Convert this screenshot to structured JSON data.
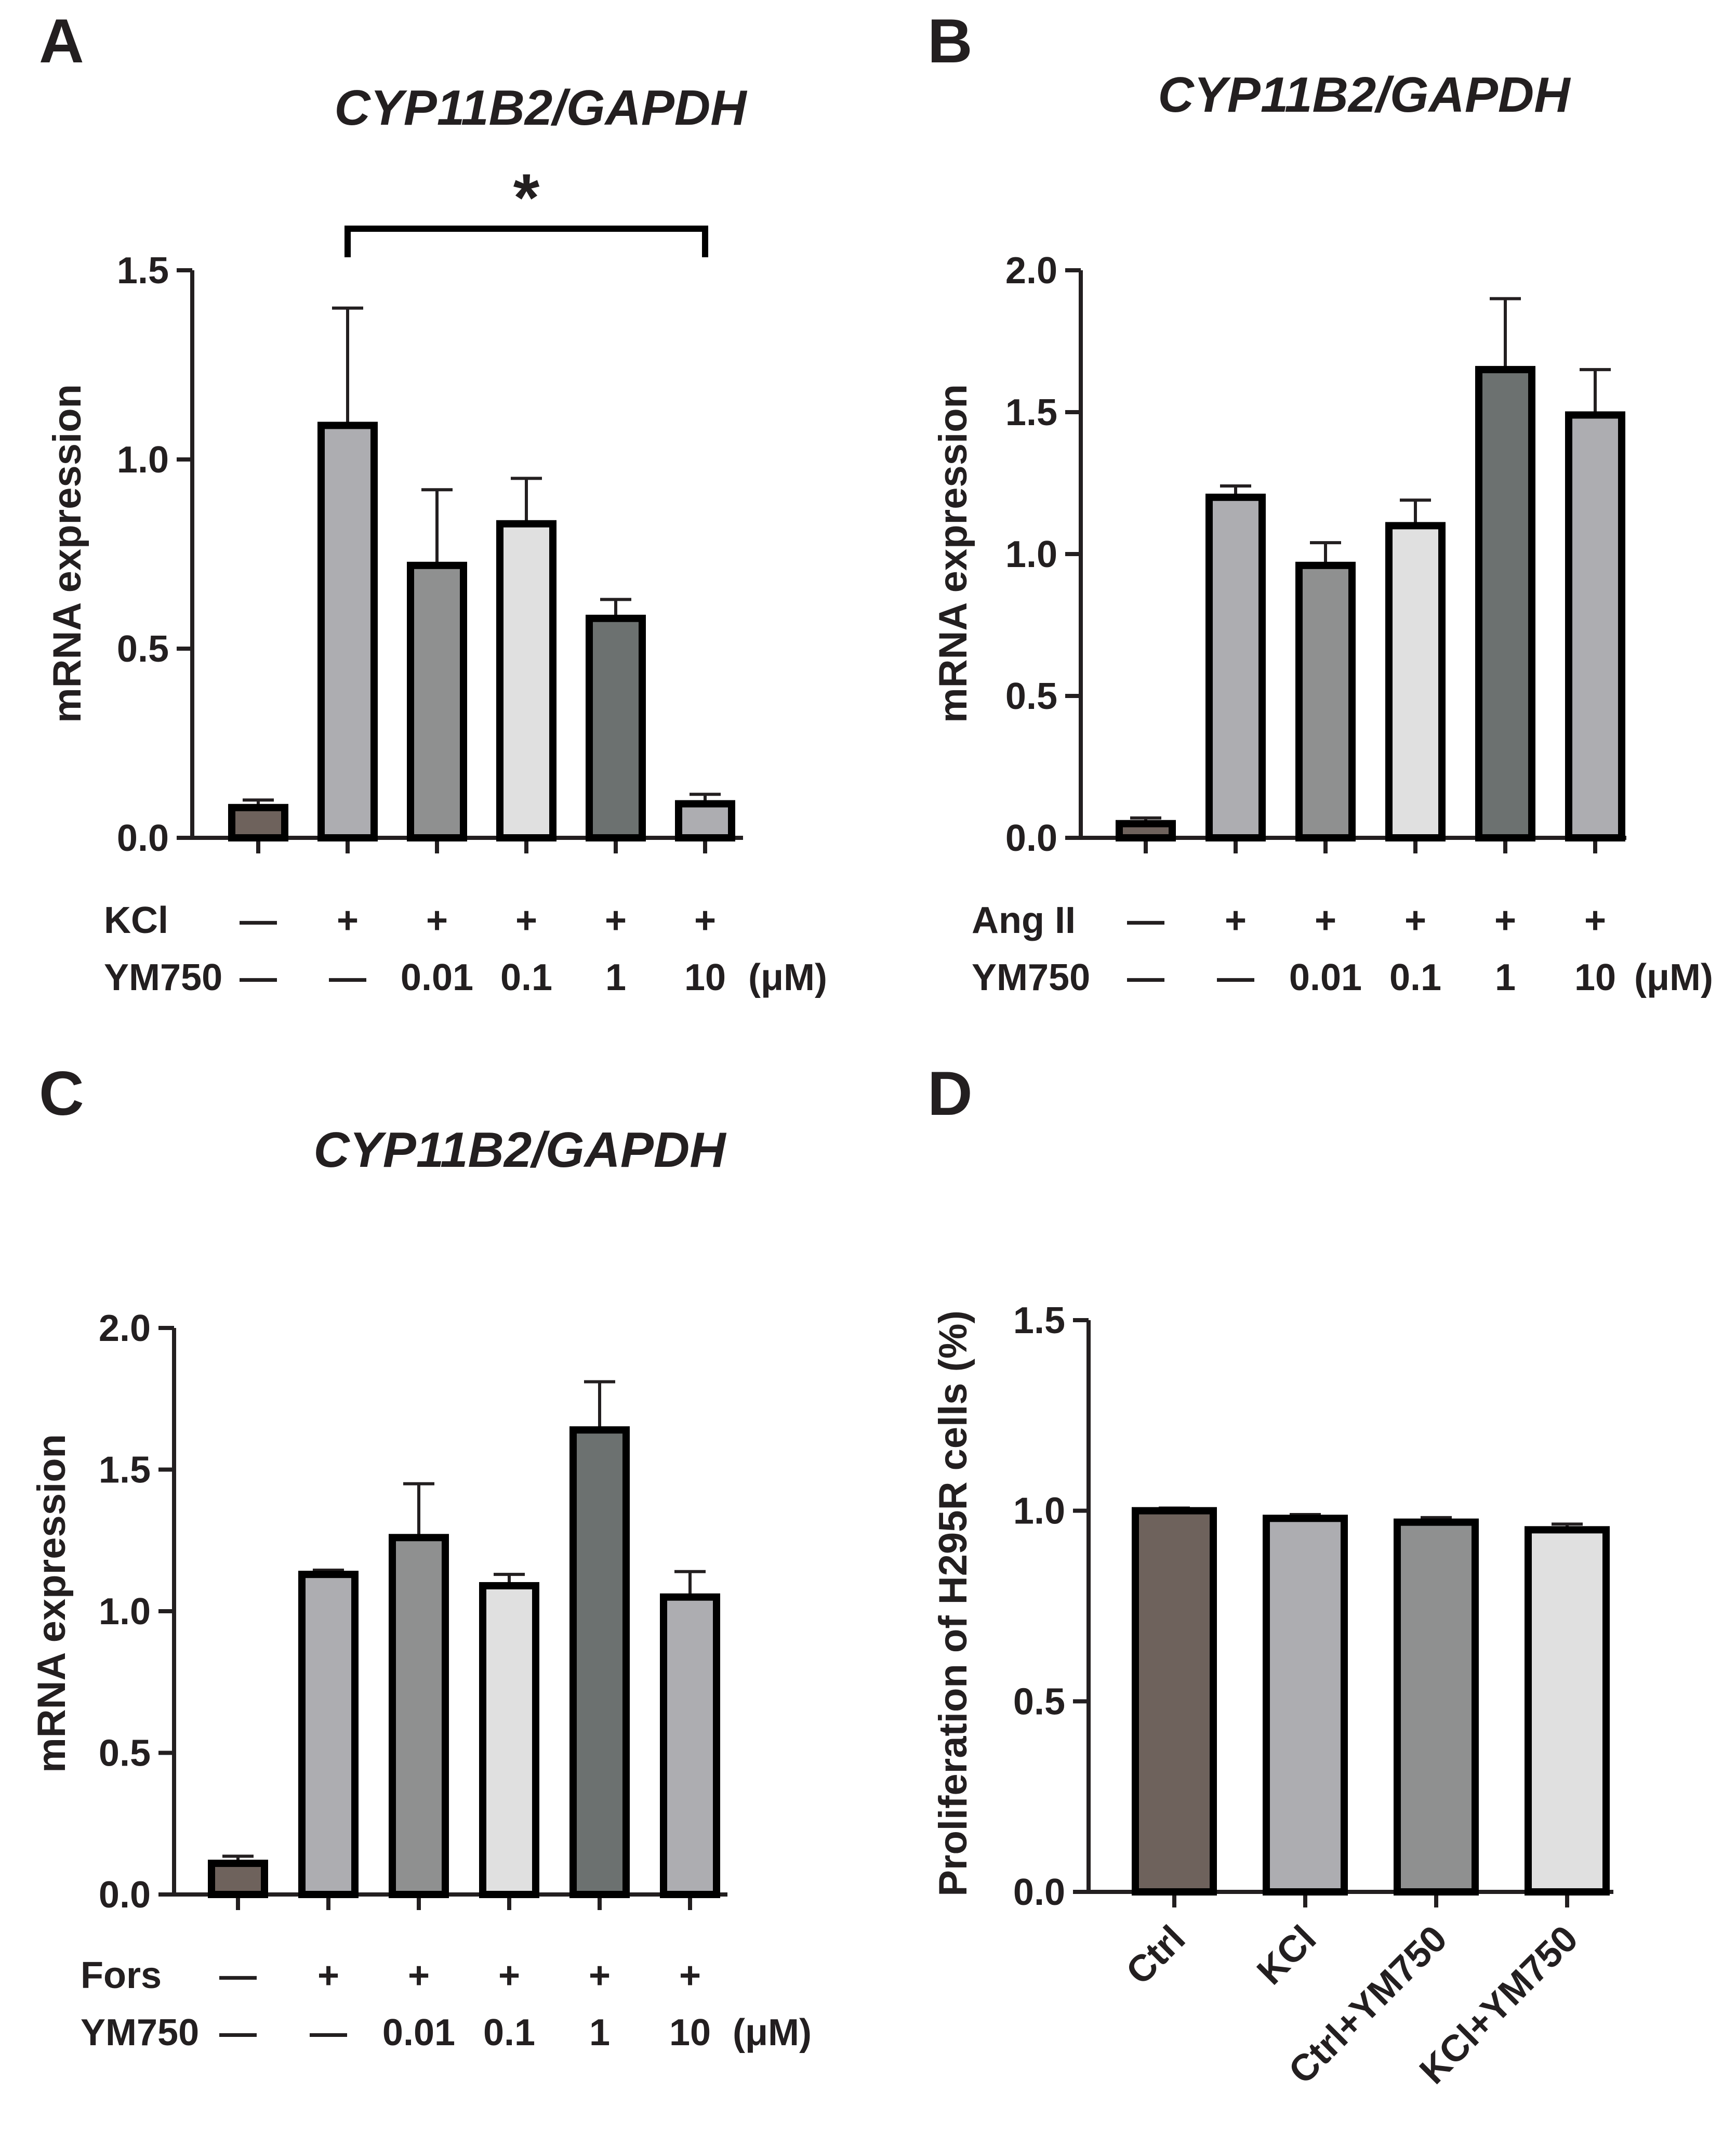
{
  "chart_data": [
    {
      "panel": "A",
      "type": "bar",
      "title": "CYP11B2/GAPDH",
      "ylabel": "mRNA expression",
      "ylim": [
        0,
        1.5
      ],
      "yticks": [
        "0.0",
        "0.5",
        "1.0",
        "1.5"
      ],
      "values": [
        0.08,
        1.09,
        0.72,
        0.83,
        0.58,
        0.09
      ],
      "errors": [
        0.02,
        0.31,
        0.2,
        0.12,
        0.05,
        0.025
      ],
      "colors": [
        "#6e625c",
        "#adadb1",
        "#8f9090",
        "#e0e0e0",
        "#6c7170",
        "#adadb1"
      ],
      "rows": [
        {
          "label": "KCl",
          "values": [
            "—",
            "+",
            "+",
            "+",
            "+",
            "+"
          ],
          "unit": ""
        },
        {
          "label": "YM750",
          "values": [
            "—",
            "—",
            "0.01",
            "0.1",
            "1",
            "10"
          ],
          "unit": "(μM)"
        }
      ],
      "significance": {
        "label": "*",
        "from": 1,
        "to": 5
      }
    },
    {
      "panel": "B",
      "type": "bar",
      "title": "CYP11B2/GAPDH",
      "ylabel": "mRNA expression",
      "ylim": [
        0,
        2.0
      ],
      "yticks": [
        "0.0",
        "0.5",
        "1.0",
        "1.5",
        "2.0"
      ],
      "values": [
        0.05,
        1.2,
        0.96,
        1.1,
        1.65,
        1.49
      ],
      "errors": [
        0.02,
        0.04,
        0.08,
        0.09,
        0.25,
        0.16
      ],
      "colors": [
        "#6e625c",
        "#adadb1",
        "#8f9090",
        "#e0e0e0",
        "#6c7170",
        "#adadb1"
      ],
      "rows": [
        {
          "label": "Ang II",
          "values": [
            "—",
            "+",
            "+",
            "+",
            "+",
            "+"
          ],
          "unit": ""
        },
        {
          "label": "YM750",
          "values": [
            "—",
            "—",
            "0.01",
            "0.1",
            "1",
            "10"
          ],
          "unit": "(μM)"
        }
      ]
    },
    {
      "panel": "C",
      "type": "bar",
      "title": "CYP11B2/GAPDH",
      "ylabel": "mRNA expression",
      "ylim": [
        0,
        2.0
      ],
      "yticks": [
        "0.0",
        "0.5",
        "1.0",
        "1.5",
        "2.0"
      ],
      "values": [
        0.11,
        1.13,
        1.26,
        1.09,
        1.64,
        1.05
      ],
      "errors": [
        0.025,
        0.015,
        0.19,
        0.04,
        0.17,
        0.09
      ],
      "colors": [
        "#6e625c",
        "#adadb1",
        "#8f9090",
        "#e0e0e0",
        "#6c7170",
        "#adadb1"
      ],
      "rows": [
        {
          "label": "Fors",
          "values": [
            "—",
            "+",
            "+",
            "+",
            "+",
            "+"
          ],
          "unit": ""
        },
        {
          "label": "YM750",
          "values": [
            "—",
            "—",
            "0.01",
            "0.1",
            "1",
            "10"
          ],
          "unit": "(μM)"
        }
      ]
    },
    {
      "panel": "D",
      "type": "bar",
      "title": "",
      "ylabel": "Proliferation of  H295R cells (%)",
      "ylim": [
        0,
        1.5
      ],
      "yticks": [
        "0.0",
        "0.5",
        "1.0",
        "1.5"
      ],
      "categories": [
        "Ctrl",
        "KCl",
        "Ctrl+YM750",
        "KCl+YM750"
      ],
      "values": [
        1.0,
        0.98,
        0.97,
        0.95
      ],
      "errors": [
        0.007,
        0.01,
        0.012,
        0.015
      ],
      "colors": [
        "#6e625c",
        "#adadb1",
        "#8f9090",
        "#e0e0e0"
      ]
    }
  ]
}
